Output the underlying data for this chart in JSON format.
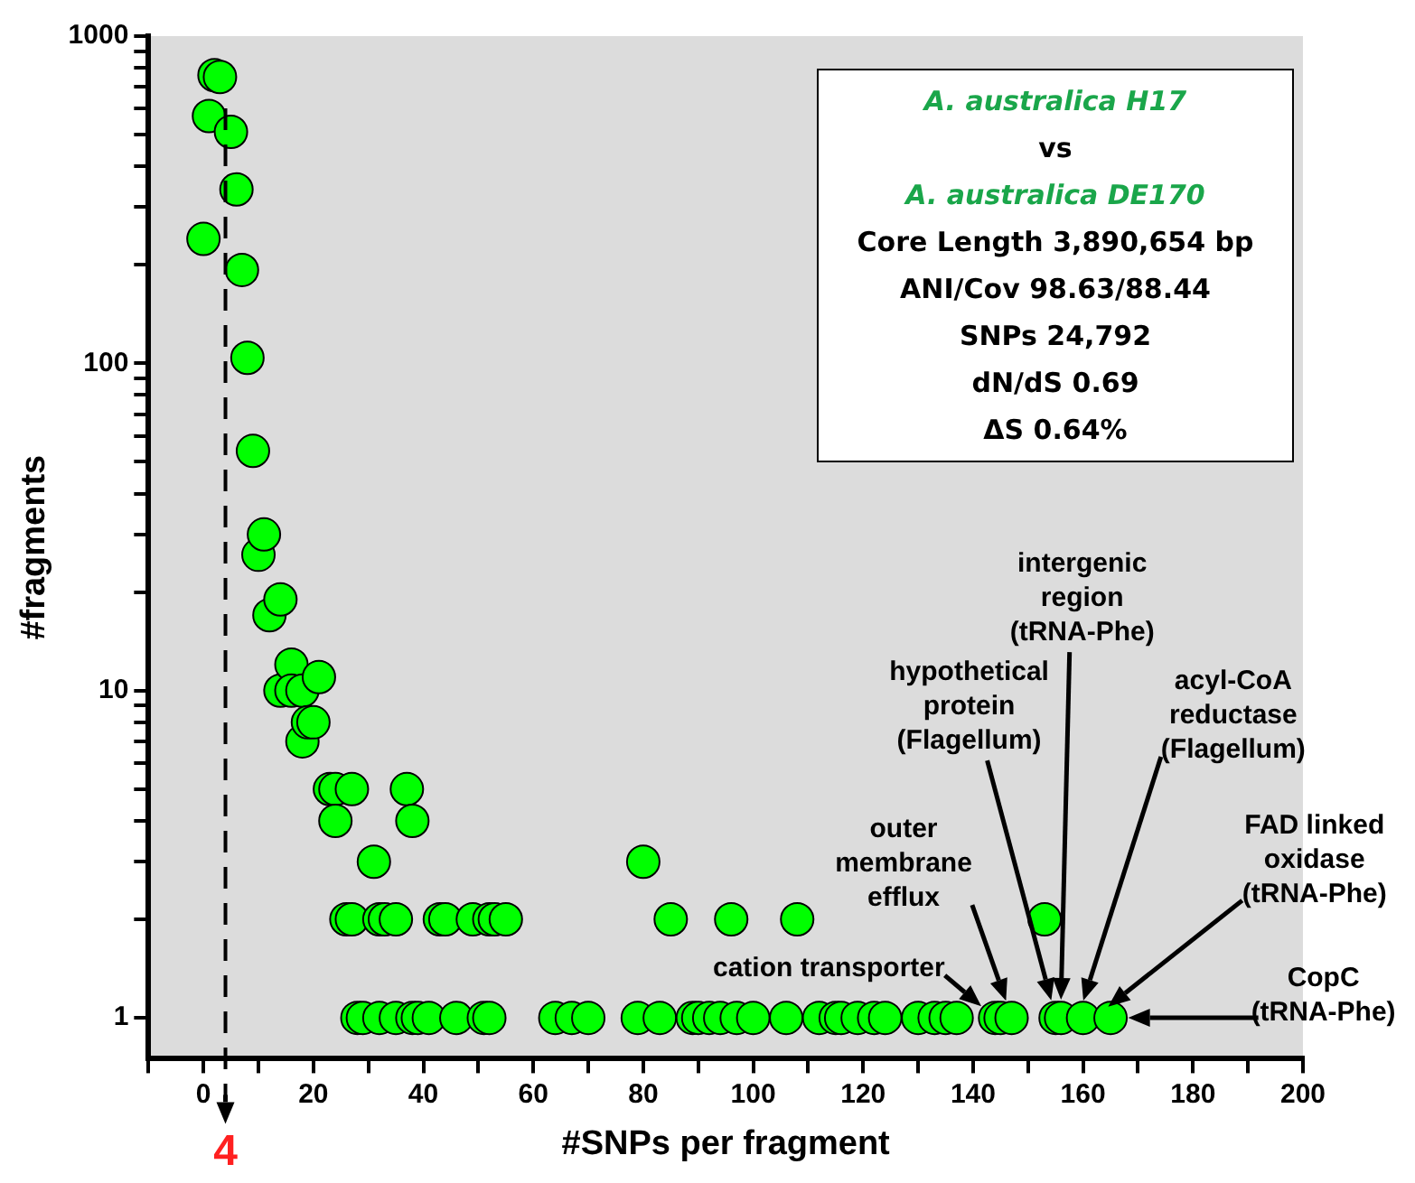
{
  "chart_data": {
    "type": "scatter",
    "xlabel": "#SNPs per fragment",
    "ylabel": "#fragments",
    "log": "y",
    "grid": false,
    "legend": false,
    "marker": "circle",
    "xlim": [
      -10,
      200
    ],
    "xticks": [
      {
        "value": -10,
        "label": null
      },
      0,
      {
        "value": 10,
        "label": null
      },
      20,
      {
        "value": 30,
        "label": null
      },
      40,
      {
        "value": 50,
        "label": null
      },
      60,
      {
        "value": 70,
        "label": null
      },
      80,
      {
        "value": 90,
        "label": null
      },
      100,
      {
        "value": 110,
        "label": null
      },
      120,
      {
        "value": 130,
        "label": null
      },
      140,
      {
        "value": 150,
        "label": null
      },
      160,
      {
        "value": 170,
        "label": null
      },
      180,
      {
        "value": 190,
        "label": null
      },
      200
    ],
    "ylim": [
      0.75,
      1000
    ],
    "yticks": [
      1,
      {
        "value": 2,
        "label": null
      },
      {
        "value": 3,
        "label": null
      },
      {
        "value": 4,
        "label": null
      },
      {
        "value": 5,
        "label": null
      },
      {
        "value": 6,
        "label": null
      },
      {
        "value": 7,
        "label": null
      },
      {
        "value": 8,
        "label": null
      },
      {
        "value": 9,
        "label": null
      },
      10,
      {
        "value": 20,
        "label": null
      },
      {
        "value": 30,
        "label": null
      },
      {
        "value": 40,
        "label": null
      },
      {
        "value": 50,
        "label": null
      },
      {
        "value": 60,
        "label": null
      },
      {
        "value": 70,
        "label": null
      },
      {
        "value": 80,
        "label": null
      },
      {
        "value": 90,
        "label": null
      },
      100,
      {
        "value": 200,
        "label": null
      },
      {
        "value": 300,
        "label": null
      },
      {
        "value": 400,
        "label": null
      },
      {
        "value": 500,
        "label": null
      },
      {
        "value": 600,
        "label": null
      },
      {
        "value": 700,
        "label": null
      },
      {
        "value": 800,
        "label": null
      },
      {
        "value": 900,
        "label": null
      },
      1000
    ],
    "series": [
      {
        "color": "#00ff00",
        "x": [
          0,
          1,
          2,
          3,
          5,
          6,
          7,
          8,
          9,
          10,
          11,
          12,
          14,
          14,
          16,
          16,
          18,
          18,
          19,
          20,
          21,
          23,
          24,
          24,
          27,
          31,
          37,
          38,
          26,
          27,
          32,
          33,
          35,
          43,
          44,
          49,
          52,
          53,
          55,
          80,
          85,
          96,
          108,
          153,
          28,
          29,
          32,
          35,
          38,
          39,
          41,
          46,
          51,
          52,
          64,
          67,
          70,
          79,
          83,
          89,
          90,
          92,
          94,
          97,
          100,
          106,
          112,
          115,
          116,
          119,
          122,
          124,
          130,
          133,
          135,
          137,
          144,
          145,
          147,
          155,
          156,
          160,
          165
        ],
        "values": [
          240,
          570,
          760,
          750,
          510,
          340,
          193,
          104,
          54,
          26,
          30,
          17,
          19,
          10,
          12,
          10,
          10,
          7,
          8,
          8,
          11,
          5,
          5,
          4,
          5,
          3,
          5,
          4,
          2,
          2,
          2,
          2,
          2,
          2,
          2,
          2,
          2,
          2,
          2,
          3,
          2,
          2,
          2,
          2,
          1,
          1,
          1,
          1,
          1,
          1,
          1,
          1,
          1,
          1,
          1,
          1,
          1,
          1,
          1,
          1,
          1,
          1,
          1,
          1,
          1,
          1,
          1,
          1,
          1,
          1,
          1,
          1,
          1,
          1,
          1,
          1,
          1,
          1,
          1,
          1,
          1,
          1,
          1
        ]
      }
    ],
    "ref_lines": [
      {
        "axis": "x",
        "value": 4,
        "label": "4",
        "color": "#000000",
        "line_style": "dashed"
      }
    ],
    "annotations": [
      "A. australica  H17",
      "vs",
      "A. australica  DE170",
      "Core Length 3,890,654 bp",
      "ANI/Cov 98.63/88.44",
      "SNPs 24,792",
      "dN/dS 0.69",
      "ΔS 0.64%",
      {
        "text": "cation transporter",
        "x": 144,
        "y": 1
      },
      "outer membrane efflux",
      "hypothetical protein (Flagellum)",
      "intergenic region (tRNA-Phe)",
      "acyl-CoA reductase (Flagellum)",
      "FAD linked oxidase (tRNA-Phe)",
      "CopC (tRNA-Phe)"
    ]
  }
}
